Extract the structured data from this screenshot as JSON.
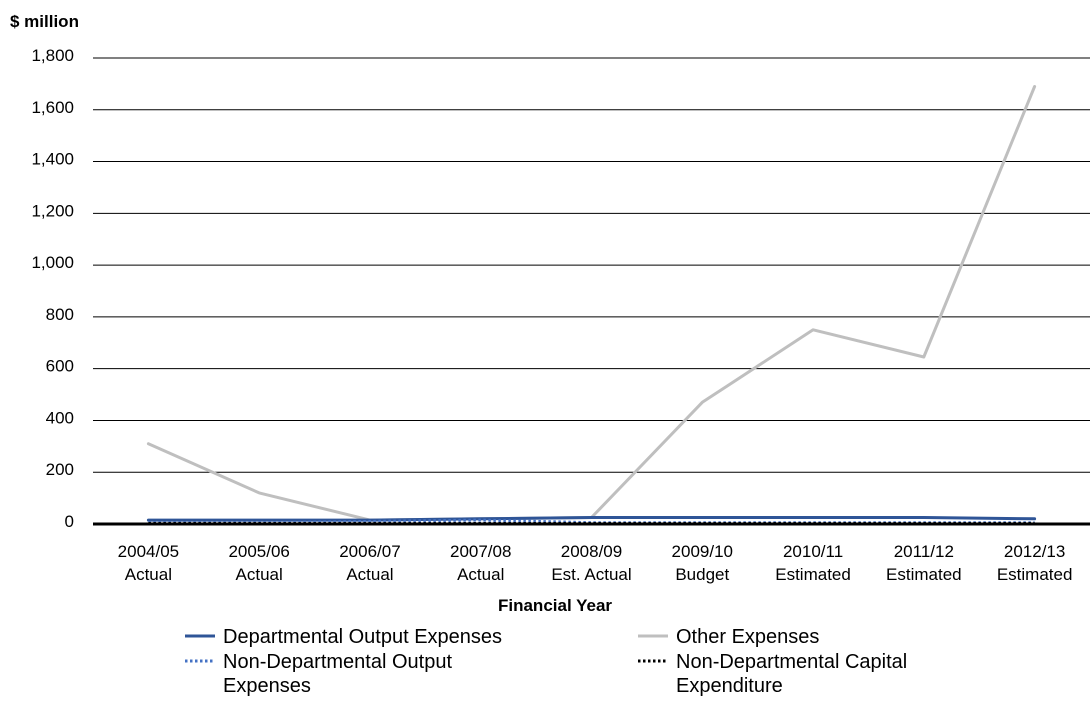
{
  "chart_data": {
    "type": "line",
    "ylabel": "$ million",
    "xlabel": "Financial Year",
    "ylim": [
      0,
      1800
    ],
    "yticks": [
      {
        "value": 0,
        "label": "0"
      },
      {
        "value": 200,
        "label": "200"
      },
      {
        "value": 400,
        "label": "400"
      },
      {
        "value": 600,
        "label": "600"
      },
      {
        "value": 800,
        "label": "800"
      },
      {
        "value": 1000,
        "label": "1,000"
      },
      {
        "value": 1200,
        "label": "1,200"
      },
      {
        "value": 1400,
        "label": "1,400"
      },
      {
        "value": 1600,
        "label": "1,600"
      },
      {
        "value": 1800,
        "label": "1,800"
      }
    ],
    "categories": [
      [
        "2004/05",
        "Actual"
      ],
      [
        "2005/06",
        "Actual"
      ],
      [
        "2006/07",
        "Actual"
      ],
      [
        "2007/08",
        "Actual"
      ],
      [
        "2008/09",
        "Est. Actual"
      ],
      [
        "2009/10",
        "Budget"
      ],
      [
        "2010/11",
        "Estimated"
      ],
      [
        "2011/12",
        "Estimated"
      ],
      [
        "2012/13",
        "Estimated"
      ]
    ],
    "grid": true,
    "legend_position": "bottom",
    "series": [
      {
        "name": "Departmental Output Expenses",
        "name_lines": [
          "Departmental Output Expenses"
        ],
        "color": "#2f5597",
        "style": "solid",
        "values": [
          15,
          15,
          15,
          20,
          25,
          25,
          25,
          25,
          20
        ]
      },
      {
        "name": "Other Expenses",
        "name_lines": [
          "Other Expenses"
        ],
        "color": "#bfbfbf",
        "style": "solid",
        "values": [
          310,
          120,
          15,
          20,
          25,
          470,
          750,
          645,
          1690
        ]
      },
      {
        "name": "Non-Departmental Output Expenses",
        "name_lines": [
          "Non-Departmental Output",
          "Expenses"
        ],
        "color": "#4472c4",
        "style": "dotted",
        "values": [
          5,
          5,
          10,
          15,
          5,
          5,
          5,
          5,
          5
        ]
      },
      {
        "name": "Non-Departmental Capital Expenditure",
        "name_lines": [
          "Non-Departmental Capital",
          "Expenditure"
        ],
        "color": "#000000",
        "style": "dotted",
        "values": [
          2,
          2,
          2,
          2,
          2,
          2,
          2,
          2,
          2
        ]
      }
    ]
  }
}
